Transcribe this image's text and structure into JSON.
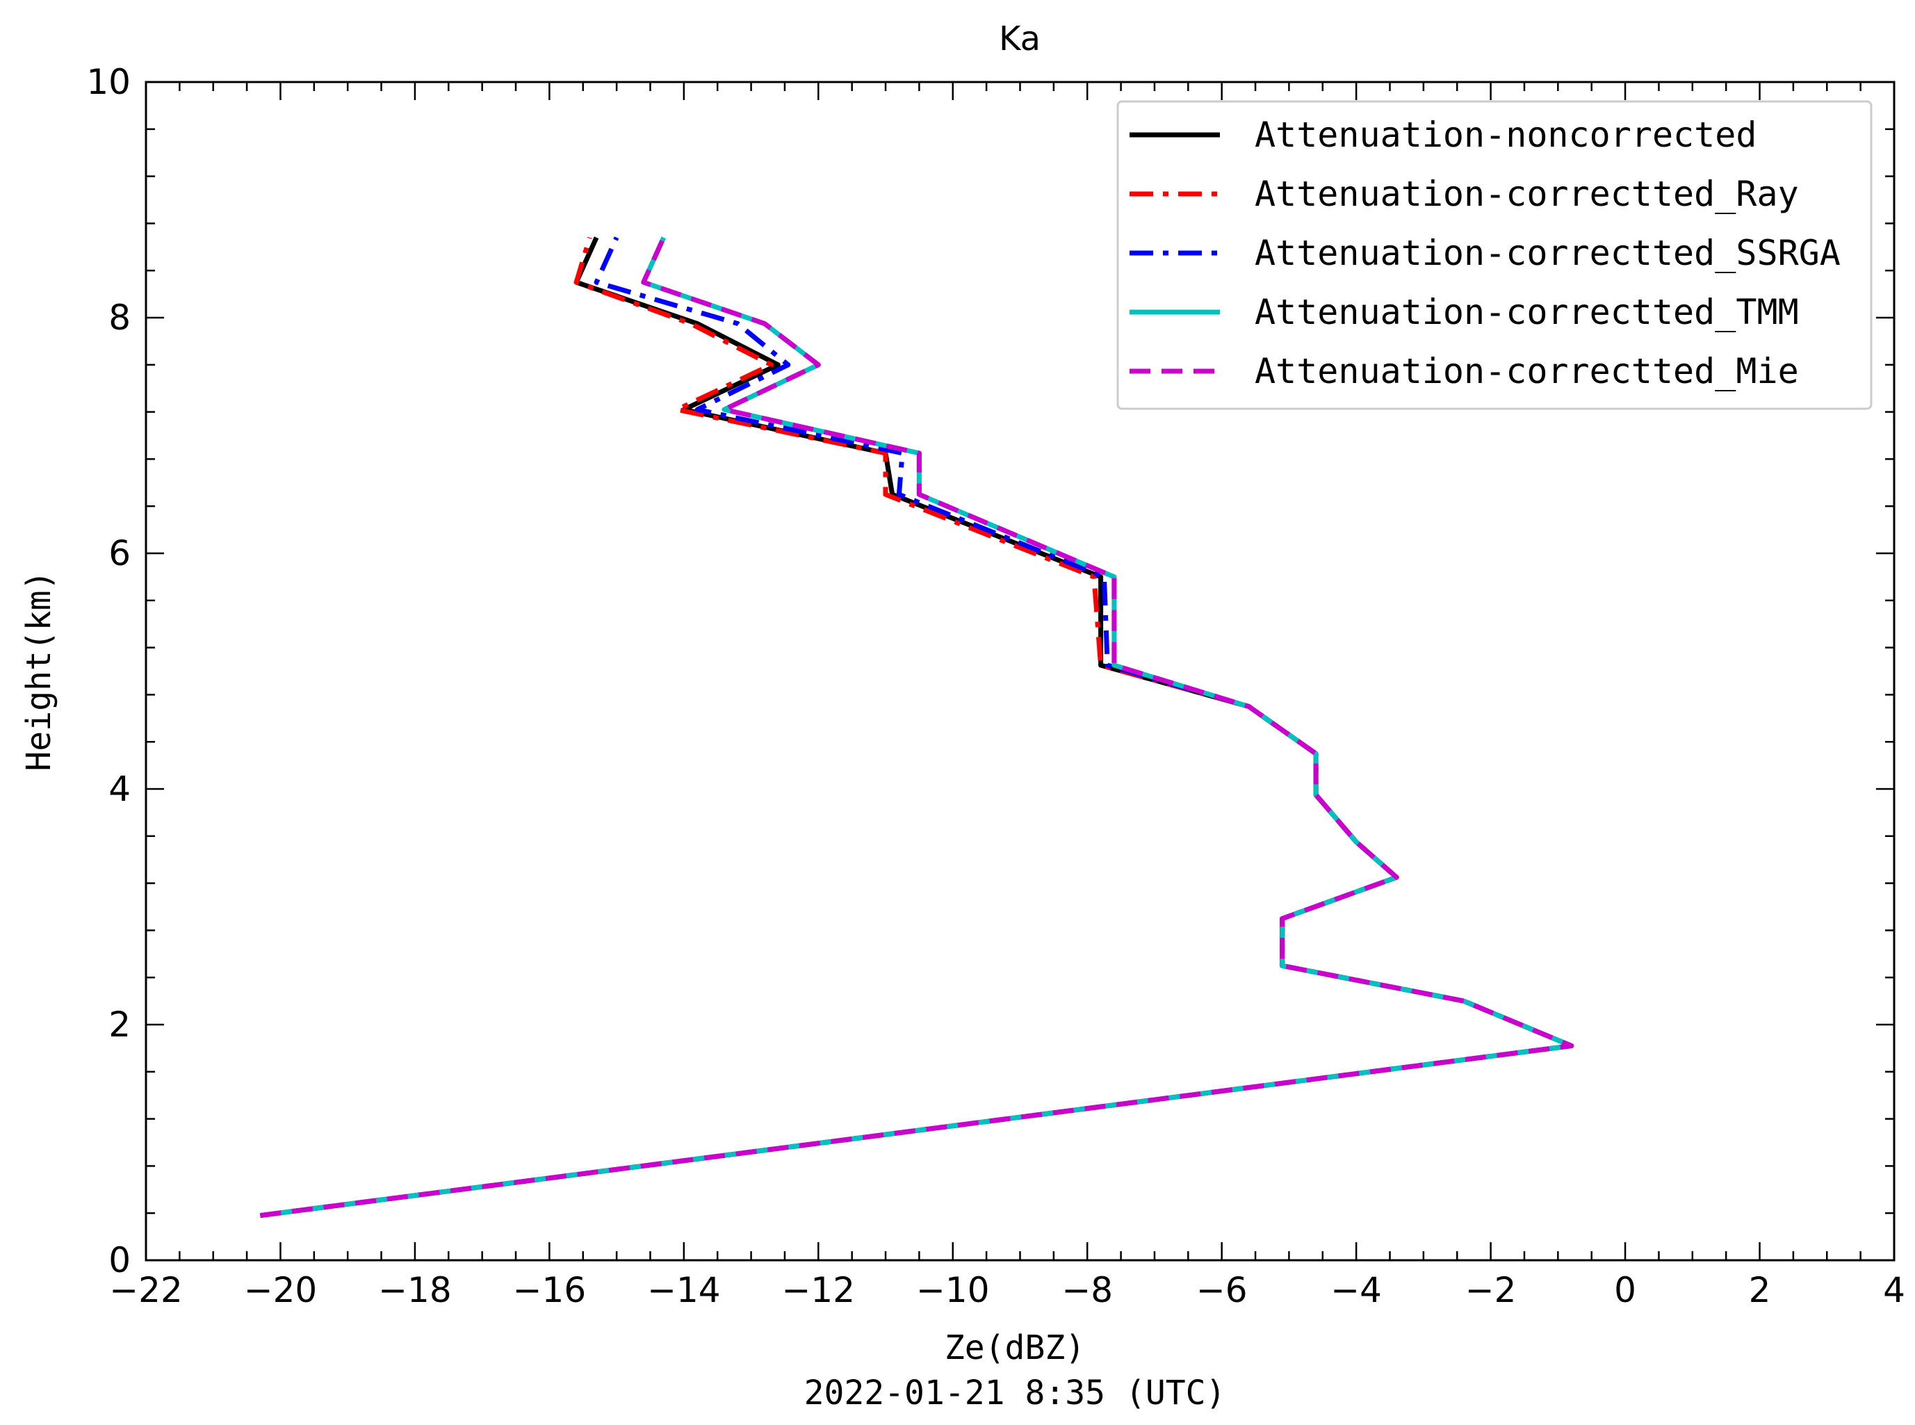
{
  "chart_data": {
    "type": "line",
    "title": "Ka",
    "xlabel": "Ze(dBZ)",
    "xlabel_sub": "2022-01-21 8:35 (UTC)",
    "ylabel": "Height(km)",
    "xlim": [
      -22,
      4
    ],
    "ylim": [
      0,
      10
    ],
    "xticks": [
      -22,
      -20,
      -18,
      -16,
      -14,
      -12,
      -10,
      -8,
      -6,
      -4,
      -2,
      0,
      2,
      4
    ],
    "yticks": [
      0,
      2,
      4,
      6,
      8,
      10
    ],
    "xtick_labels": [
      "−22",
      "−20",
      "−18",
      "−16",
      "−14",
      "−12",
      "−10",
      "−8",
      "−6",
      "−4",
      "−2",
      "0",
      "2",
      "4"
    ],
    "ytick_labels": [
      "0",
      "2",
      "4",
      "6",
      "8",
      "10"
    ],
    "grid": false,
    "legend_position": "top-right",
    "series": [
      {
        "name": "Attenuation-noncorrected",
        "color": "#000000",
        "dash": "solid",
        "points": [
          [
            -20.3,
            0.38
          ],
          [
            -0.8,
            1.82
          ],
          [
            -2.4,
            2.2
          ],
          [
            -5.1,
            2.5
          ],
          [
            -5.1,
            2.9
          ],
          [
            -3.4,
            3.25
          ],
          [
            -4.0,
            3.55
          ],
          [
            -4.6,
            3.95
          ],
          [
            -4.6,
            4.3
          ],
          [
            -5.6,
            4.7
          ],
          [
            -7.8,
            5.05
          ],
          [
            -7.8,
            5.8
          ],
          [
            -10.9,
            6.5
          ],
          [
            -11.0,
            6.85
          ],
          [
            -14.0,
            7.22
          ],
          [
            -12.6,
            7.6
          ],
          [
            -13.8,
            7.95
          ],
          [
            -15.6,
            8.3
          ],
          [
            -15.3,
            8.68
          ]
        ]
      },
      {
        "name": "Attenuation-correctted_Ray",
        "color": "#ff0000",
        "dash": "dashdot",
        "points": [
          [
            -20.3,
            0.38
          ],
          [
            -0.8,
            1.82
          ],
          [
            -2.4,
            2.2
          ],
          [
            -5.1,
            2.5
          ],
          [
            -5.1,
            2.9
          ],
          [
            -3.4,
            3.25
          ],
          [
            -4.0,
            3.55
          ],
          [
            -4.6,
            3.95
          ],
          [
            -4.6,
            4.3
          ],
          [
            -5.6,
            4.7
          ],
          [
            -7.8,
            5.05
          ],
          [
            -7.9,
            5.8
          ],
          [
            -11.0,
            6.5
          ],
          [
            -11.0,
            6.85
          ],
          [
            -14.1,
            7.22
          ],
          [
            -12.7,
            7.6
          ],
          [
            -13.9,
            7.95
          ],
          [
            -15.6,
            8.3
          ],
          [
            -15.4,
            8.68
          ]
        ]
      },
      {
        "name": "Attenuation-correctted_SSRGA",
        "color": "#0000ff",
        "dash": "dashdot",
        "points": [
          [
            -20.3,
            0.38
          ],
          [
            -0.8,
            1.82
          ],
          [
            -2.4,
            2.2
          ],
          [
            -5.1,
            2.5
          ],
          [
            -5.1,
            2.9
          ],
          [
            -3.4,
            3.25
          ],
          [
            -4.0,
            3.55
          ],
          [
            -4.6,
            3.95
          ],
          [
            -4.6,
            4.3
          ],
          [
            -5.6,
            4.7
          ],
          [
            -7.7,
            5.05
          ],
          [
            -7.75,
            5.8
          ],
          [
            -10.8,
            6.5
          ],
          [
            -10.75,
            6.85
          ],
          [
            -13.8,
            7.22
          ],
          [
            -12.45,
            7.6
          ],
          [
            -13.2,
            7.95
          ],
          [
            -15.3,
            8.3
          ],
          [
            -15.0,
            8.68
          ]
        ]
      },
      {
        "name": "Attenuation-correctted_TMM",
        "color": "#00c0c0",
        "dash": "solid",
        "points": [
          [
            -20.3,
            0.38
          ],
          [
            -0.8,
            1.82
          ],
          [
            -2.4,
            2.2
          ],
          [
            -5.1,
            2.5
          ],
          [
            -5.1,
            2.9
          ],
          [
            -3.4,
            3.25
          ],
          [
            -4.0,
            3.55
          ],
          [
            -4.6,
            3.95
          ],
          [
            -4.6,
            4.3
          ],
          [
            -5.6,
            4.7
          ],
          [
            -7.6,
            5.05
          ],
          [
            -7.6,
            5.8
          ],
          [
            -10.5,
            6.5
          ],
          [
            -10.5,
            6.85
          ],
          [
            -13.4,
            7.22
          ],
          [
            -12.0,
            7.6
          ],
          [
            -12.8,
            7.95
          ],
          [
            -14.6,
            8.3
          ],
          [
            -14.3,
            8.68
          ]
        ]
      },
      {
        "name": "Attenuation-correctted_Mie",
        "color": "#cc00cc",
        "dash": "dashed",
        "points": [
          [
            -20.3,
            0.38
          ],
          [
            -0.8,
            1.82
          ],
          [
            -2.4,
            2.2
          ],
          [
            -5.1,
            2.5
          ],
          [
            -5.1,
            2.9
          ],
          [
            -3.4,
            3.25
          ],
          [
            -4.0,
            3.55
          ],
          [
            -4.6,
            3.95
          ],
          [
            -4.6,
            4.3
          ],
          [
            -5.6,
            4.7
          ],
          [
            -7.6,
            5.05
          ],
          [
            -7.6,
            5.8
          ],
          [
            -10.5,
            6.5
          ],
          [
            -10.5,
            6.85
          ],
          [
            -13.4,
            7.22
          ],
          [
            -12.0,
            7.6
          ],
          [
            -12.8,
            7.95
          ],
          [
            -14.6,
            8.3
          ],
          [
            -14.3,
            8.68
          ]
        ]
      }
    ]
  }
}
